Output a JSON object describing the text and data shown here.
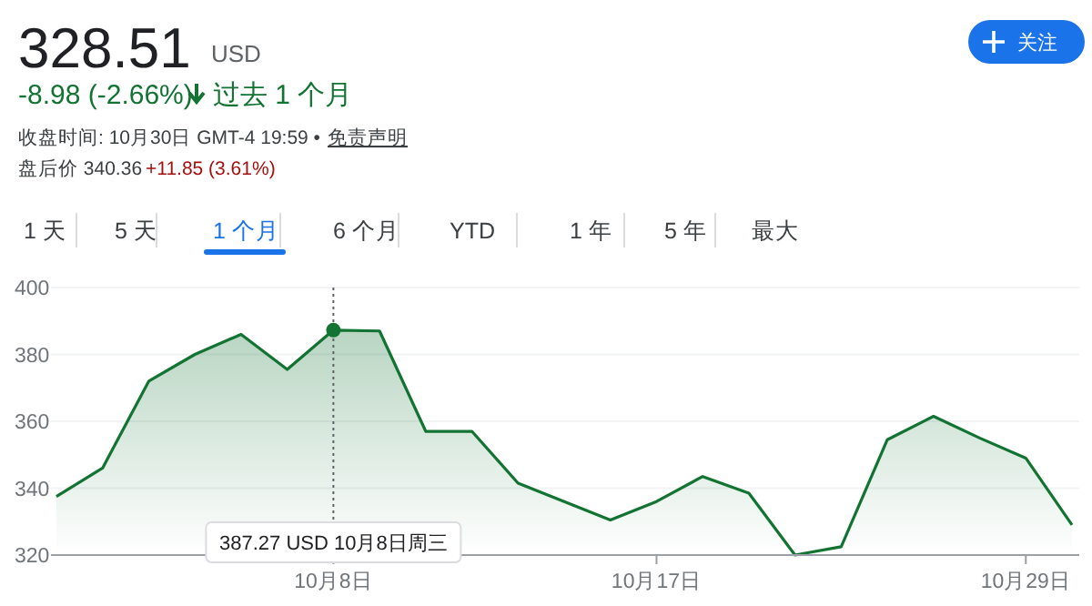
{
  "chart_data": {
    "type": "area",
    "title": "328.51",
    "subtitle": "USD",
    "categories": [
      null,
      null,
      null,
      null,
      null,
      null,
      "10月8日",
      null,
      null,
      null,
      null,
      null,
      null,
      "10月17日",
      null,
      null,
      null,
      null,
      null,
      null,
      null,
      "10月29日",
      null
    ],
    "series": [
      {
        "color": "#137333",
        "values": [
          337.5,
          346,
          372,
          380,
          386,
          375.5,
          387.27,
          387,
          357,
          357,
          341.5,
          336,
          330.5,
          336,
          343.5,
          338.5,
          320,
          322.5,
          354.5,
          361.5,
          355,
          349,
          329
        ]
      }
    ],
    "ylim": [
      320,
      400
    ],
    "yticks": [
      320,
      340,
      360,
      380,
      400
    ],
    "grid": "y",
    "annotations": [
      "-8.98 (-2.66%)",
      "过去 1 个月",
      "收盘时间: 10月30日 GMT-4 19:59 •",
      "免责声明",
      "盘后价 340.36",
      "+11.85 (3.61%)",
      "关注",
      "1 天",
      "5 天",
      "1 个月",
      "6 个月",
      "YTD",
      "1 年",
      "5 年",
      "最大",
      "387.27 USD  10月8日周三"
    ]
  }
}
